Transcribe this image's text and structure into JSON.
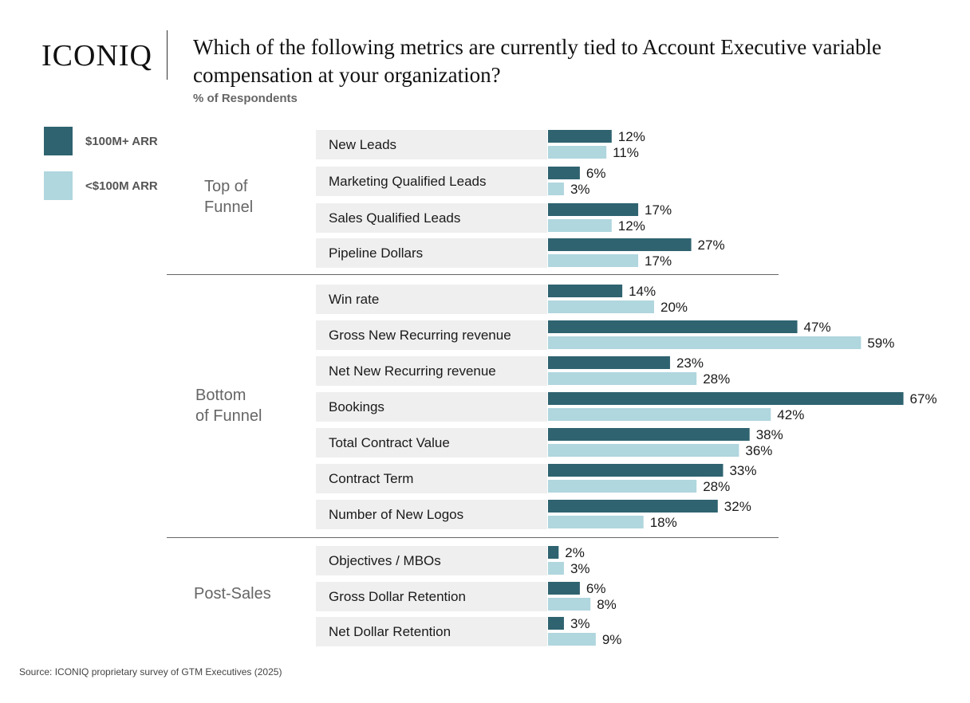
{
  "brand": {
    "logo_text": "ICONIQ"
  },
  "chart_data": {
    "type": "bar",
    "orientation": "horizontal",
    "title": "Which of the following metrics are currently tied to Account Executive variable compensation at your organization?",
    "subtitle": "% of Respondents",
    "value_unit": "%",
    "series": [
      {
        "name": "$100M+ ARR",
        "color": "#2f6370"
      },
      {
        "name": "<$100M ARR",
        "color": "#b0d6de"
      }
    ],
    "groups": [
      {
        "label": "Top of Funnel",
        "label_lines": [
          "Top of",
          "Funnel"
        ]
      },
      {
        "label": "Bottom of Funnel",
        "label_lines": [
          "Bottom",
          "of Funnel"
        ]
      },
      {
        "label": "Post-Sales",
        "label_lines": [
          "Post-Sales"
        ]
      }
    ],
    "categories": [
      {
        "label": "New Leads",
        "group": "Top of Funnel",
        "values": [
          12,
          11
        ]
      },
      {
        "label": "Marketing Qualified Leads",
        "group": "Top of Funnel",
        "values": [
          6,
          3
        ]
      },
      {
        "label": "Sales Qualified Leads",
        "group": "Top of Funnel",
        "values": [
          17,
          12
        ]
      },
      {
        "label": "Pipeline Dollars",
        "group": "Top of Funnel",
        "values": [
          27,
          17
        ]
      },
      {
        "label": "Win rate",
        "group": "Bottom of Funnel",
        "values": [
          14,
          20
        ]
      },
      {
        "label": "Gross New Recurring revenue",
        "group": "Bottom of Funnel",
        "values": [
          47,
          59
        ]
      },
      {
        "label": "Net New Recurring revenue",
        "group": "Bottom of Funnel",
        "values": [
          23,
          28
        ]
      },
      {
        "label": "Bookings",
        "group": "Bottom of Funnel",
        "values": [
          67,
          42
        ]
      },
      {
        "label": "Total Contract Value",
        "group": "Bottom of Funnel",
        "values": [
          38,
          36
        ]
      },
      {
        "label": "Contract Term",
        "group": "Bottom of Funnel",
        "values": [
          33,
          28
        ]
      },
      {
        "label": "Number of New Logos",
        "group": "Bottom of Funnel",
        "values": [
          32,
          18
        ]
      },
      {
        "label": "Objectives / MBOs",
        "group": "Post-Sales",
        "values": [
          2,
          3
        ]
      },
      {
        "label": "Gross Dollar Retention",
        "group": "Post-Sales",
        "values": [
          6,
          8
        ]
      },
      {
        "label": "Net Dollar Retention",
        "group": "Post-Sales",
        "values": [
          3,
          9
        ]
      }
    ],
    "grid": false,
    "legend_position": "left"
  },
  "source": "Source: ICONIQ proprietary survey of GTM Executives (2025)"
}
